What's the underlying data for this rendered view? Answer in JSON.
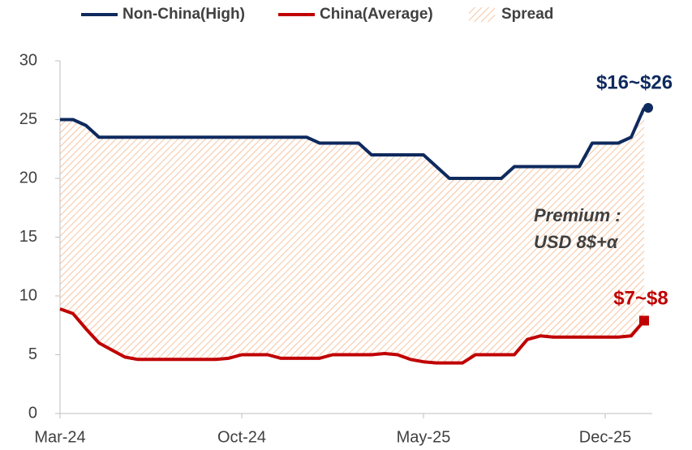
{
  "chart_data": {
    "type": "line",
    "categories": [
      "Mar-24",
      null,
      null,
      null,
      null,
      null,
      null,
      null,
      null,
      null,
      null,
      null,
      null,
      null,
      "Oct-24",
      null,
      null,
      null,
      null,
      null,
      null,
      null,
      null,
      null,
      null,
      null,
      null,
      null,
      "May-25",
      null,
      null,
      null,
      null,
      null,
      null,
      null,
      null,
      null,
      null,
      null,
      null,
      null,
      "Dec-25",
      null,
      null,
      null
    ],
    "series": [
      {
        "name": "Non-China(High)",
        "color": "#0e2a5e",
        "values": [
          25,
          25,
          24.5,
          23.5,
          23.5,
          23.5,
          23.5,
          23.5,
          23.5,
          23.5,
          23.5,
          23.5,
          23.5,
          23.5,
          23.5,
          23.5,
          23.5,
          23.5,
          23.5,
          23.5,
          23,
          23,
          23,
          23,
          22,
          22,
          22,
          22,
          22,
          21,
          20,
          20,
          20,
          20,
          20,
          21,
          21,
          21,
          21,
          21,
          21,
          23,
          23,
          23,
          23.5,
          26
        ]
      },
      {
        "name": "China(Average)",
        "color": "#c00000",
        "values": [
          8.9,
          8.5,
          7.2,
          6.0,
          5.4,
          4.8,
          4.6,
          4.6,
          4.6,
          4.6,
          4.6,
          4.6,
          4.6,
          4.7,
          5.0,
          5.0,
          5.0,
          4.7,
          4.7,
          4.7,
          4.7,
          5.0,
          5.0,
          5.0,
          5.0,
          5.1,
          5.0,
          4.6,
          4.4,
          4.3,
          4.3,
          4.3,
          5.0,
          5.0,
          5.0,
          5.0,
          6.3,
          6.6,
          6.5,
          6.5,
          6.5,
          6.5,
          6.5,
          6.5,
          6.6,
          7.9
        ]
      }
    ],
    "spread": {
      "name": "Spread",
      "color": "#f4b183"
    },
    "ylim": [
      0,
      30
    ],
    "yticks": [
      0,
      5,
      10,
      15,
      20,
      25,
      30
    ],
    "annotations": [
      "$16~$26",
      "$7~$8",
      "Premium :",
      "USD 8$+α"
    ]
  }
}
